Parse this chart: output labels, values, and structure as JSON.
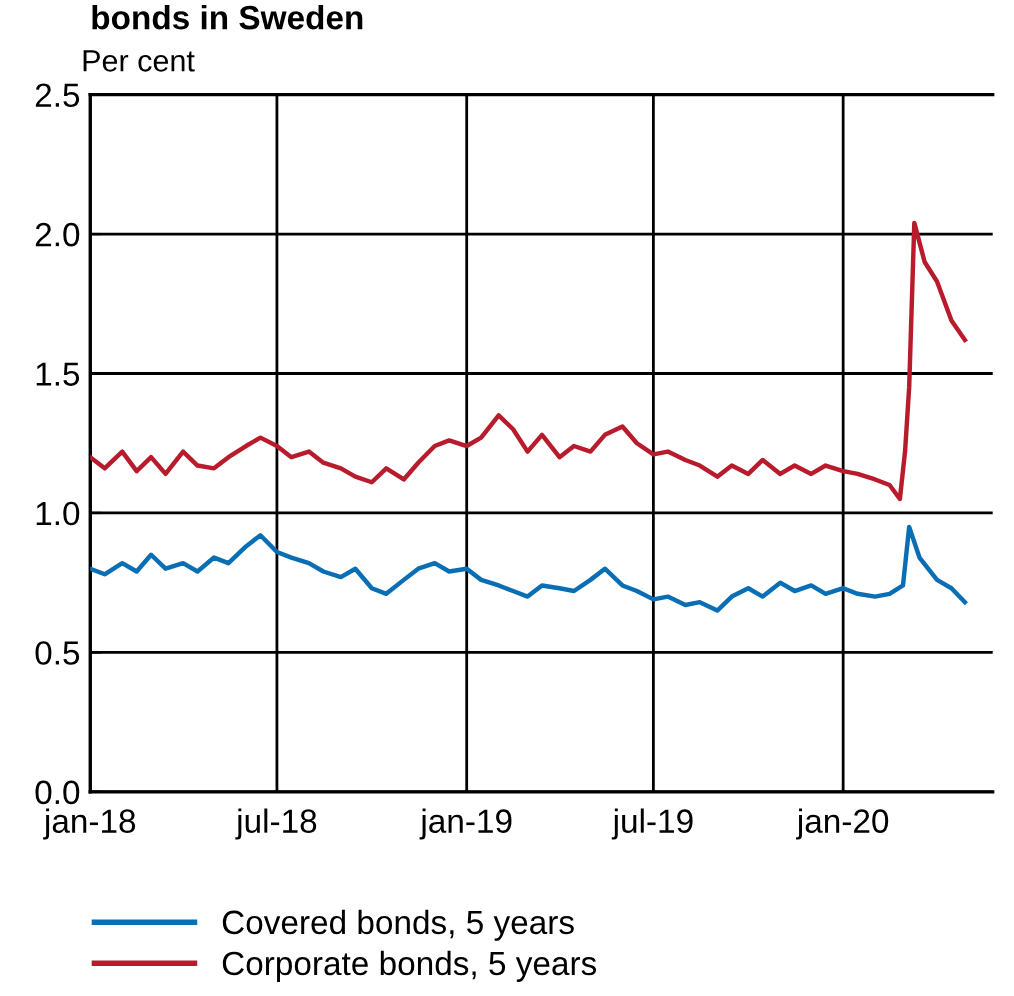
{
  "chart_data": {
    "type": "line",
    "title": "bonds in Sweden",
    "ylabel": "Per cent",
    "xlim": [
      "2018-01-01",
      "2020-05-25"
    ],
    "ylim": [
      0,
      2.5
    ],
    "yticks": [
      {
        "value": 0,
        "label": "0.0"
      },
      {
        "value": 0.5,
        "label": "0.5"
      },
      {
        "value": 1,
        "label": "1.0"
      },
      {
        "value": 1.5,
        "label": "1.5"
      },
      {
        "value": 2,
        "label": "2.0"
      },
      {
        "value": 2.5,
        "label": "2.5"
      }
    ],
    "xticks": [
      {
        "value": "2018-01-01",
        "label": "jan-18"
      },
      {
        "value": "2018-07-01",
        "label": "jul-18"
      },
      {
        "value": "2019-01-01",
        "label": "jan-19"
      },
      {
        "value": "2019-07-01",
        "label": "jul-19"
      },
      {
        "value": "2020-01-01",
        "label": "jan-20"
      }
    ],
    "grid": true,
    "legend": "bottom",
    "line_style": "solid",
    "series": [
      {
        "name": "Covered bonds, 5 years",
        "color": "#0a6eb4",
        "x": [
          "2018-01-01",
          "2018-01-15",
          "2018-02-01",
          "2018-02-15",
          "2018-03-01",
          "2018-03-15",
          "2018-04-01",
          "2018-04-15",
          "2018-05-01",
          "2018-05-15",
          "2018-06-01",
          "2018-06-15",
          "2018-07-01",
          "2018-07-15",
          "2018-08-01",
          "2018-08-15",
          "2018-09-01",
          "2018-09-15",
          "2018-10-01",
          "2018-10-15",
          "2018-11-01",
          "2018-11-15",
          "2018-12-01",
          "2018-12-15",
          "2019-01-01",
          "2019-01-15",
          "2019-02-01",
          "2019-02-15",
          "2019-03-01",
          "2019-03-15",
          "2019-04-01",
          "2019-04-15",
          "2019-05-01",
          "2019-05-15",
          "2019-06-01",
          "2019-06-15",
          "2019-07-01",
          "2019-07-15",
          "2019-08-01",
          "2019-08-15",
          "2019-09-01",
          "2019-09-15",
          "2019-10-01",
          "2019-10-15",
          "2019-11-01",
          "2019-11-15",
          "2019-12-01",
          "2019-12-15",
          "2020-01-01",
          "2020-01-15",
          "2020-02-01",
          "2020-02-15",
          "2020-02-28",
          "2020-03-05",
          "2020-03-15",
          "2020-04-01",
          "2020-04-15",
          "2020-04-28"
        ],
        "values": [
          0.8,
          0.78,
          0.82,
          0.79,
          0.85,
          0.8,
          0.82,
          0.79,
          0.84,
          0.82,
          0.88,
          0.92,
          0.86,
          0.84,
          0.82,
          0.79,
          0.77,
          0.8,
          0.73,
          0.71,
          0.76,
          0.8,
          0.82,
          0.79,
          0.8,
          0.76,
          0.74,
          0.72,
          0.7,
          0.74,
          0.73,
          0.72,
          0.76,
          0.8,
          0.74,
          0.72,
          0.69,
          0.7,
          0.67,
          0.68,
          0.65,
          0.7,
          0.73,
          0.7,
          0.75,
          0.72,
          0.74,
          0.71,
          0.73,
          0.71,
          0.7,
          0.71,
          0.74,
          0.95,
          0.84,
          0.76,
          0.73,
          0.68
        ]
      },
      {
        "name": "Corporate bonds, 5 years",
        "color": "#b81c2c",
        "x": [
          "2018-01-01",
          "2018-01-15",
          "2018-02-01",
          "2018-02-15",
          "2018-03-01",
          "2018-03-15",
          "2018-04-01",
          "2018-04-15",
          "2018-05-01",
          "2018-05-15",
          "2018-06-01",
          "2018-06-15",
          "2018-07-01",
          "2018-07-15",
          "2018-08-01",
          "2018-08-15",
          "2018-09-01",
          "2018-09-15",
          "2018-10-01",
          "2018-10-15",
          "2018-11-01",
          "2018-11-15",
          "2018-12-01",
          "2018-12-15",
          "2019-01-01",
          "2019-01-15",
          "2019-02-01",
          "2019-02-15",
          "2019-03-01",
          "2019-03-15",
          "2019-04-01",
          "2019-04-15",
          "2019-05-01",
          "2019-05-15",
          "2019-06-01",
          "2019-06-15",
          "2019-07-01",
          "2019-07-15",
          "2019-08-01",
          "2019-08-15",
          "2019-09-01",
          "2019-09-15",
          "2019-10-01",
          "2019-10-15",
          "2019-11-01",
          "2019-11-15",
          "2019-12-01",
          "2019-12-15",
          "2020-01-01",
          "2020-01-15",
          "2020-02-01",
          "2020-02-15",
          "2020-02-25",
          "2020-03-01",
          "2020-03-05",
          "2020-03-10",
          "2020-03-20",
          "2020-04-01",
          "2020-04-15",
          "2020-04-28"
        ],
        "values": [
          1.2,
          1.16,
          1.22,
          1.15,
          1.2,
          1.14,
          1.22,
          1.17,
          1.16,
          1.2,
          1.24,
          1.27,
          1.24,
          1.2,
          1.22,
          1.18,
          1.16,
          1.13,
          1.11,
          1.16,
          1.12,
          1.18,
          1.24,
          1.26,
          1.24,
          1.27,
          1.35,
          1.3,
          1.22,
          1.28,
          1.2,
          1.24,
          1.22,
          1.28,
          1.31,
          1.25,
          1.21,
          1.22,
          1.19,
          1.17,
          1.13,
          1.17,
          1.14,
          1.19,
          1.14,
          1.17,
          1.14,
          1.17,
          1.15,
          1.14,
          1.12,
          1.1,
          1.05,
          1.22,
          1.45,
          2.04,
          1.9,
          1.83,
          1.69,
          1.62
        ]
      }
    ]
  }
}
